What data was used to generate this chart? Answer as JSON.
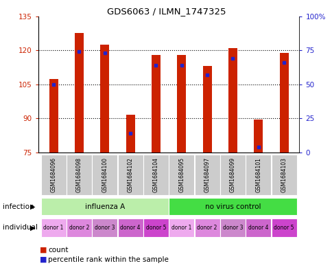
{
  "title": "GDS6063 / ILMN_1747325",
  "samples": [
    "GSM1684096",
    "GSM1684098",
    "GSM1684100",
    "GSM1684102",
    "GSM1684104",
    "GSM1684095",
    "GSM1684097",
    "GSM1684099",
    "GSM1684101",
    "GSM1684103"
  ],
  "counts": [
    107.5,
    127.5,
    122.5,
    91.5,
    118.0,
    118.0,
    113.0,
    121.0,
    89.5,
    119.0
  ],
  "percentile_ranks": [
    50,
    74,
    73,
    14,
    64,
    64,
    57,
    69,
    4,
    66
  ],
  "ylim_left": [
    75,
    135
  ],
  "ylim_right": [
    0,
    100
  ],
  "yticks_left": [
    75,
    90,
    105,
    120,
    135
  ],
  "yticks_right": [
    0,
    25,
    50,
    75,
    100
  ],
  "bar_color": "#cc2200",
  "dot_color": "#2222cc",
  "infection_groups": [
    {
      "label": "influenza A",
      "start": 0,
      "end": 5,
      "color": "#bbeeaa"
    },
    {
      "label": "no virus control",
      "start": 5,
      "end": 10,
      "color": "#44dd44"
    }
  ],
  "individual_colors": [
    "#eeaaee",
    "#dd88dd",
    "#cc88cc",
    "#cc66cc",
    "#cc44cc",
    "#eeaaee",
    "#dd88dd",
    "#cc88cc",
    "#cc66cc",
    "#cc44cc"
  ],
  "individual_labels": [
    "donor 1",
    "donor 2",
    "donor 3",
    "donor 4",
    "donor 5",
    "donor 1",
    "donor 2",
    "donor 3",
    "donor 4",
    "donor 5"
  ],
  "infection_label": "infection",
  "individual_row_label": "individual",
  "legend_count": "count",
  "legend_percentile": "percentile rank within the sample",
  "left_tick_color": "#cc2200",
  "right_tick_color": "#2222cc",
  "bar_width": 0.35
}
